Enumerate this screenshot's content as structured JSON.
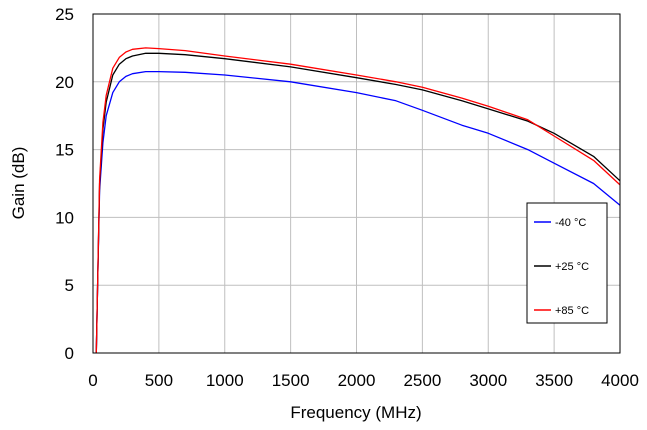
{
  "chart_data": {
    "type": "line",
    "xlabel": "Frequency (MHz)",
    "ylabel": "Gain (dB)",
    "xlim": [
      0,
      4000
    ],
    "ylim": [
      0,
      25
    ],
    "xticks": [
      0,
      500,
      1000,
      1500,
      2000,
      2500,
      3000,
      3500,
      4000
    ],
    "yticks": [
      0,
      5,
      10,
      15,
      20,
      25
    ],
    "grid": true,
    "legend_position": "lower-right",
    "series": [
      {
        "name": "-40 °C",
        "color": "#0000ff",
        "x": [
          25,
          35,
          50,
          75,
          100,
          150,
          200,
          250,
          300,
          400,
          500,
          700,
          1000,
          1500,
          2000,
          2300,
          2500,
          2800,
          3000,
          3300,
          3500,
          3800,
          4000
        ],
        "y": [
          0,
          5,
          12,
          15.5,
          17.5,
          19.2,
          20,
          20.4,
          20.6,
          20.75,
          20.75,
          20.7,
          20.5,
          20,
          19.2,
          18.6,
          17.9,
          16.8,
          16.2,
          15,
          14,
          12.5,
          10.9
        ]
      },
      {
        "name": "+25 °C",
        "color": "#000000",
        "x": [
          25,
          35,
          50,
          75,
          100,
          150,
          200,
          250,
          300,
          400,
          500,
          700,
          1000,
          1500,
          2000,
          2300,
          2500,
          2800,
          3000,
          3300,
          3500,
          3800,
          4000
        ],
        "y": [
          0,
          5,
          12.5,
          16.5,
          18.5,
          20.5,
          21.3,
          21.7,
          21.9,
          22.1,
          22.1,
          22,
          21.7,
          21.1,
          20.3,
          19.8,
          19.4,
          18.6,
          18,
          17.1,
          16.2,
          14.5,
          12.7
        ]
      },
      {
        "name": "+85 °C",
        "color": "#ff0000",
        "x": [
          25,
          35,
          50,
          75,
          100,
          150,
          200,
          250,
          300,
          400,
          500,
          700,
          1000,
          1500,
          2000,
          2300,
          2500,
          2800,
          3000,
          3300,
          3500,
          3800,
          4000
        ],
        "y": [
          0,
          5,
          12.8,
          17,
          19,
          21,
          21.8,
          22.2,
          22.4,
          22.5,
          22.45,
          22.3,
          21.9,
          21.3,
          20.5,
          20,
          19.6,
          18.8,
          18.2,
          17.2,
          16,
          14.2,
          12.4
        ]
      }
    ]
  }
}
